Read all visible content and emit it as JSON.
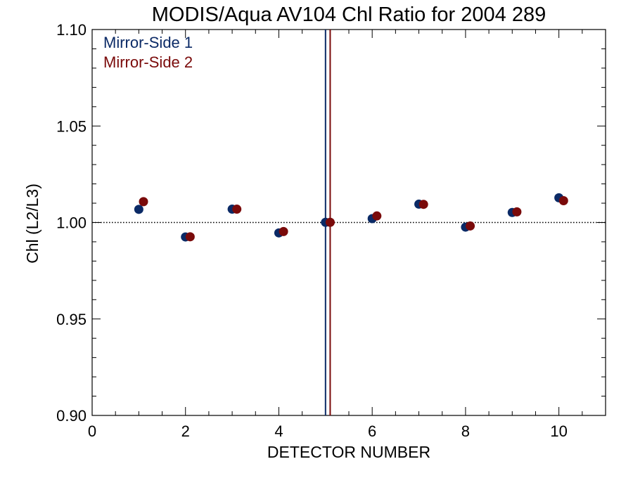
{
  "chart_data": {
    "type": "scatter",
    "title": "MODIS/Aqua AV104 Chl Ratio for 2004 289",
    "xlabel": "DETECTOR NUMBER",
    "ylabel": "Chl (L2/L3)",
    "xlim": [
      0,
      11
    ],
    "ylim": [
      0.9,
      1.1
    ],
    "x_ticks": [
      0,
      2,
      4,
      6,
      8,
      10
    ],
    "x_tick_labels": [
      "0",
      "2",
      "4",
      "6",
      "8",
      "10"
    ],
    "y_ticks": [
      0.9,
      0.95,
      1.0,
      1.05,
      1.1
    ],
    "y_tick_labels": [
      "0.90",
      "0.95",
      "1.00",
      "1.05",
      "1.10"
    ],
    "reference_line": {
      "y": 1.0,
      "style": "dotted"
    },
    "vertical_lines": [
      {
        "x": 5.0,
        "color": "#0b2a66"
      },
      {
        "x": 5.1,
        "color": "#7a0a0a"
      }
    ],
    "legend": {
      "placement": "top-left"
    },
    "series": [
      {
        "name": "Mirror-Side 1",
        "color": "#0b2a66",
        "x": [
          1,
          2,
          3,
          4,
          5,
          6,
          7,
          8,
          9,
          10
        ],
        "y": [
          1.0068,
          0.9925,
          1.0069,
          0.9946,
          1.0001,
          1.002,
          1.0095,
          0.9976,
          1.0052,
          1.0128
        ]
      },
      {
        "name": "Mirror-Side 2",
        "color": "#7a0a0a",
        "x": [
          1.1,
          2.1,
          3.1,
          4.1,
          5.1,
          6.1,
          7.1,
          8.1,
          9.1,
          10.1
        ],
        "y": [
          1.0108,
          0.9926,
          1.0069,
          0.9953,
          1.0001,
          1.0034,
          1.0094,
          0.9982,
          1.0055,
          1.0113
        ]
      }
    ]
  }
}
